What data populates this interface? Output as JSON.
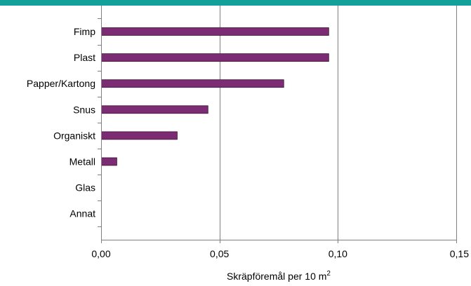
{
  "theme": {
    "accent_band": "#12a19a",
    "bar_fill": "#7b2c73",
    "bar_stroke": "#3d1038",
    "gridline": "#808080"
  },
  "chart_data": {
    "type": "bar",
    "orientation": "horizontal",
    "categories": [
      "Fimp",
      "Plast",
      "Papper/Kartong",
      "Snus",
      "Organiskt",
      "Metall",
      "Glas",
      "Annat"
    ],
    "values": [
      0.096,
      0.096,
      0.077,
      0.045,
      0.032,
      0.0065,
      0,
      0
    ],
    "title": "",
    "xlabel": "Skräpföremål per 10 m",
    "xlabel_superscript": "2",
    "ylabel": "",
    "xlim": [
      0,
      0.15
    ],
    "xticks": [
      0,
      0.05,
      0.1,
      0.15
    ],
    "xtick_labels": [
      "0,00",
      "0,05",
      "0,10",
      "0,15"
    ],
    "grid": {
      "vertical": true,
      "horizontal": false
    },
    "legend": "none"
  }
}
